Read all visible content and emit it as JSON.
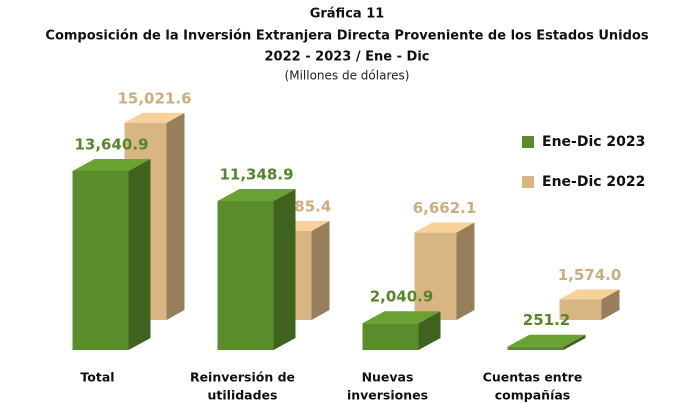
{
  "chart_data": {
    "type": "bar3d",
    "title_lines": [
      "Gráfica 11",
      "Composición de la Inversión Extranjera Directa Proveniente de los Estados Unidos",
      "2022 - 2023 / Ene - Dic"
    ],
    "subtitle": "(Millones de dólares)",
    "categories": [
      [
        "Total"
      ],
      [
        "Reinversión de",
        "utilidades"
      ],
      [
        "Nuevas",
        "inversiones"
      ],
      [
        "Cuentas entre",
        "compañías"
      ]
    ],
    "series": [
      {
        "name": "Ene-Dic 2023",
        "color": "#5b8c2c",
        "values": [
          13640.9,
          11348.9,
          2040.9,
          251.2
        ],
        "value_labels": [
          "13,640.9",
          "11,348.9",
          "2,040.9",
          "251.2"
        ]
      },
      {
        "name": "Ene-Dic 2022",
        "color": "#d8b684",
        "values": [
          15021.6,
          6785.4,
          6662.1,
          1574.0
        ],
        "value_labels": [
          "15,021.6",
          "6,785.4",
          "6,662.1",
          "1,574.0"
        ]
      }
    ],
    "ylim": [
      0,
      16000
    ],
    "legend": "right"
  }
}
